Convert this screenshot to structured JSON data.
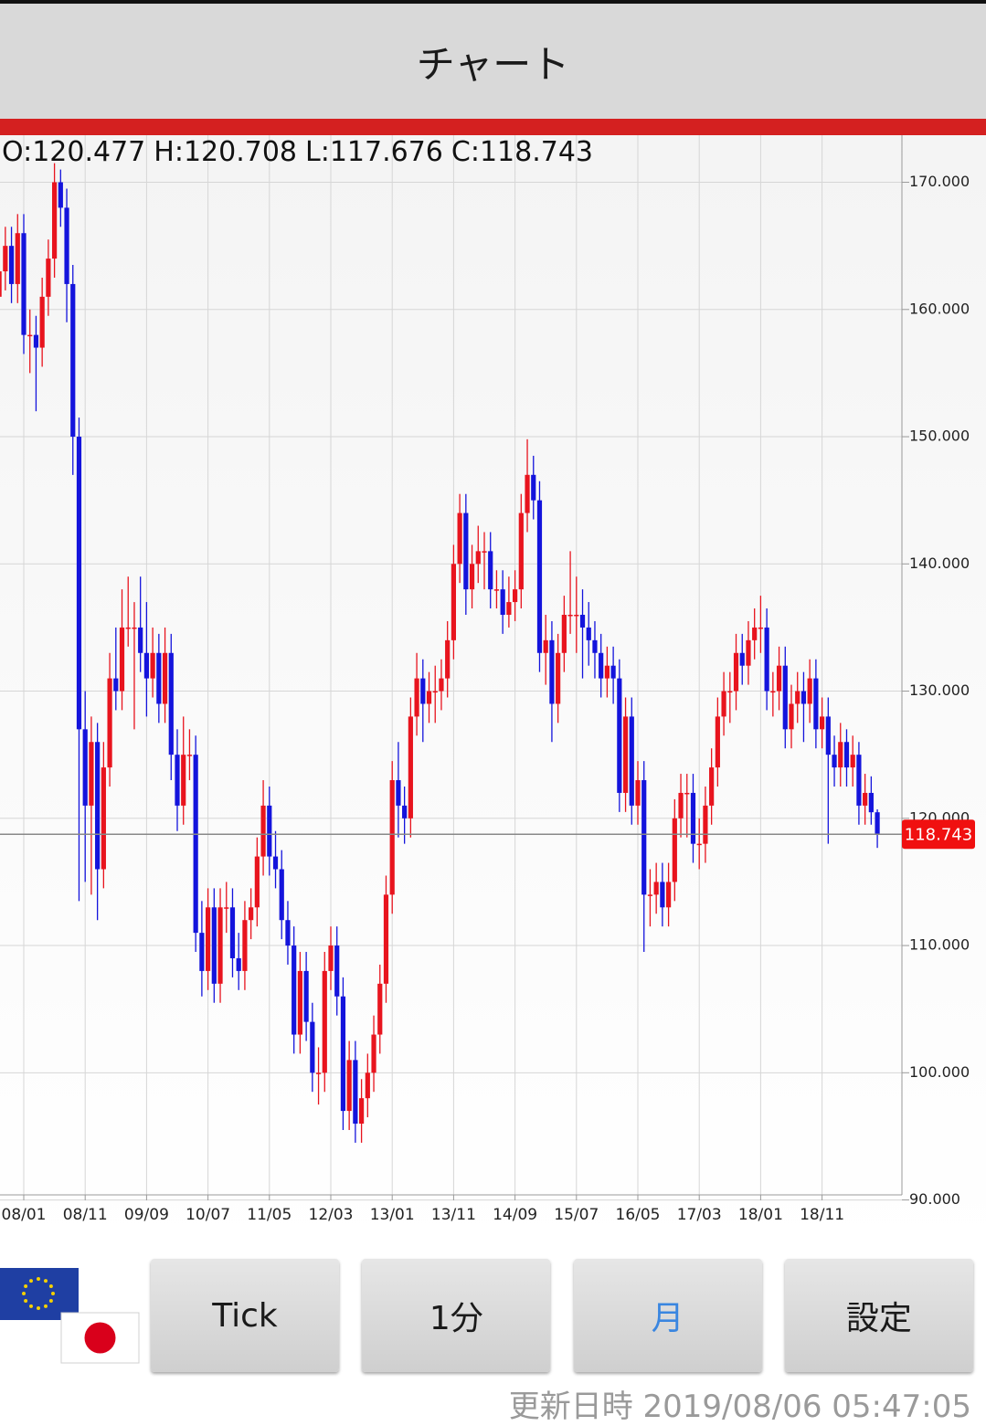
{
  "ui": {
    "header": "チャート",
    "buttons": [
      "Tick",
      "1分",
      "月",
      "設定"
    ],
    "selected_button": 2,
    "updated_label": "更新日時",
    "updated_time": "2019/08/06 05:47:05"
  },
  "chart_data": {
    "type": "candlestick",
    "up_color": "#e8141e",
    "down_color": "#1414dc",
    "ohlc_labels": [
      "O:",
      "H:",
      "L:",
      "C:"
    ],
    "ylim": [
      90.4,
      173.7
    ],
    "yticks": [
      {
        "value": 90,
        "label": "90.000"
      },
      {
        "value": 100,
        "label": "100.000"
      },
      {
        "value": 110,
        "label": "110.000"
      },
      {
        "value": 120,
        "label": "120.000"
      },
      {
        "value": 130,
        "label": "130.000"
      },
      {
        "value": 140,
        "label": "140.000"
      },
      {
        "value": 150,
        "label": "150.000"
      },
      {
        "value": 160,
        "label": "160.000"
      },
      {
        "value": 170,
        "label": "170.000"
      }
    ],
    "grid": true,
    "categories": [
      null,
      null,
      null,
      null,
      "08/01",
      null,
      null,
      null,
      null,
      null,
      null,
      null,
      null,
      null,
      "08/11",
      null,
      null,
      null,
      null,
      null,
      null,
      null,
      null,
      null,
      "09/09",
      null,
      null,
      null,
      null,
      null,
      null,
      null,
      null,
      null,
      "10/07",
      null,
      null,
      null,
      null,
      null,
      null,
      null,
      null,
      null,
      "11/05",
      null,
      null,
      null,
      null,
      null,
      null,
      null,
      null,
      null,
      "12/03",
      null,
      null,
      null,
      null,
      null,
      null,
      null,
      null,
      null,
      "13/01",
      null,
      null,
      null,
      null,
      null,
      null,
      null,
      null,
      null,
      "13/11",
      null,
      null,
      null,
      null,
      null,
      null,
      null,
      null,
      null,
      "14/09",
      null,
      null,
      null,
      null,
      null,
      null,
      null,
      null,
      null,
      "15/07",
      null,
      null,
      null,
      null,
      null,
      null,
      null,
      null,
      null,
      "16/05",
      null,
      null,
      null,
      null,
      null,
      null,
      null,
      null,
      null,
      "17/03",
      null,
      null,
      null,
      null,
      null,
      null,
      null,
      null,
      null,
      "18/01",
      null,
      null,
      null,
      null,
      null,
      null,
      null,
      null,
      null,
      "18/11",
      null,
      null,
      null,
      null,
      null,
      null,
      null,
      null,
      null
    ],
    "candles": [
      [
        161,
        166.5,
        159.5,
        163
      ],
      [
        163,
        166.5,
        161.5,
        165
      ],
      [
        165,
        166.5,
        160.5,
        162
      ],
      [
        162,
        167.5,
        160.5,
        166
      ],
      [
        166,
        167.5,
        156.5,
        158
      ],
      [
        158,
        160,
        155,
        158
      ],
      [
        158,
        159.5,
        152,
        157
      ],
      [
        157,
        162.5,
        155.5,
        161
      ],
      [
        161,
        165.5,
        159.5,
        164
      ],
      [
        164,
        171.5,
        162.5,
        170
      ],
      [
        170,
        171,
        166.5,
        168
      ],
      [
        168,
        169.5,
        159,
        162
      ],
      [
        162,
        163.5,
        147,
        150
      ],
      [
        150,
        151.5,
        113.5,
        127
      ],
      [
        127,
        130,
        115,
        121
      ],
      [
        121,
        128,
        114,
        126
      ],
      [
        126,
        127.5,
        112,
        116
      ],
      [
        116,
        126,
        114.5,
        124
      ],
      [
        124,
        133,
        122.5,
        131
      ],
      [
        131,
        135,
        128.5,
        130
      ],
      [
        130,
        138,
        128.5,
        135
      ],
      [
        135,
        139,
        133.5,
        135
      ],
      [
        135,
        137,
        127,
        135
      ],
      [
        135,
        139,
        131.5,
        133
      ],
      [
        133,
        137,
        128,
        131
      ],
      [
        131,
        135,
        129.5,
        133
      ],
      [
        133,
        134.5,
        127.5,
        129
      ],
      [
        129,
        135,
        127.5,
        133
      ],
      [
        133,
        134.5,
        123,
        125
      ],
      [
        125,
        127,
        119,
        121
      ],
      [
        121,
        128,
        119.5,
        125
      ],
      [
        125,
        127,
        123,
        125
      ],
      [
        125,
        126.5,
        109.5,
        111
      ],
      [
        111,
        113.5,
        106,
        108
      ],
      [
        108,
        114.5,
        106.5,
        113
      ],
      [
        113,
        114.5,
        105.5,
        107
      ],
      [
        107,
        114.5,
        105.5,
        113
      ],
      [
        113,
        115,
        111,
        113
      ],
      [
        113,
        114.5,
        107.5,
        109
      ],
      [
        109,
        111,
        106.5,
        108
      ],
      [
        108,
        113.5,
        106.5,
        112
      ],
      [
        112,
        114.5,
        110.5,
        113
      ],
      [
        113,
        118.5,
        111.5,
        117
      ],
      [
        117,
        123,
        115.5,
        121
      ],
      [
        121,
        122.5,
        115.5,
        117
      ],
      [
        117,
        119,
        114.5,
        116
      ],
      [
        116,
        117.5,
        110.5,
        112
      ],
      [
        112,
        113.5,
        108.5,
        110
      ],
      [
        110,
        111.5,
        101.5,
        103
      ],
      [
        103,
        109.5,
        101.5,
        108
      ],
      [
        108,
        109.5,
        102.5,
        104
      ],
      [
        104,
        105.5,
        98.5,
        100
      ],
      [
        100,
        102,
        97.5,
        100
      ],
      [
        100,
        109.5,
        98.5,
        108
      ],
      [
        108,
        111.5,
        106.5,
        110
      ],
      [
        110,
        111.5,
        104.5,
        106
      ],
      [
        106,
        107.5,
        95.5,
        97
      ],
      [
        97,
        102.5,
        95.5,
        101
      ],
      [
        101,
        102.5,
        94.5,
        96
      ],
      [
        96,
        99.5,
        94.5,
        98
      ],
      [
        98,
        101.5,
        96.5,
        100
      ],
      [
        100,
        104.5,
        98.5,
        103
      ],
      [
        103,
        108.5,
        101.5,
        107
      ],
      [
        107,
        115.5,
        105.5,
        114
      ],
      [
        114,
        124.5,
        112.5,
        123
      ],
      [
        123,
        126,
        118.5,
        121
      ],
      [
        121,
        122.5,
        118,
        120
      ],
      [
        120,
        129.5,
        118.5,
        128
      ],
      [
        128,
        133,
        126.5,
        131
      ],
      [
        131,
        132.5,
        126,
        129
      ],
      [
        129,
        131.5,
        127.5,
        130
      ],
      [
        130,
        132,
        127.5,
        130
      ],
      [
        130,
        132.5,
        128.5,
        131
      ],
      [
        131,
        135.5,
        129.5,
        134
      ],
      [
        134,
        141.5,
        132.5,
        140
      ],
      [
        140,
        145.5,
        138.5,
        144
      ],
      [
        144,
        145.5,
        136,
        138
      ],
      [
        138,
        141.5,
        136.5,
        140
      ],
      [
        140,
        143,
        138.5,
        141
      ],
      [
        141,
        142.5,
        138,
        141
      ],
      [
        141,
        142.5,
        136.5,
        138
      ],
      [
        138,
        139.5,
        136.5,
        138
      ],
      [
        138,
        139.5,
        134.5,
        136
      ],
      [
        136,
        139,
        135,
        137
      ],
      [
        137,
        139.5,
        135.5,
        138
      ],
      [
        138,
        145.5,
        136.5,
        144
      ],
      [
        144,
        149.8,
        142.5,
        147
      ],
      [
        147,
        148.5,
        143.5,
        145
      ],
      [
        145,
        146.5,
        131.5,
        133
      ],
      [
        133,
        136,
        130.5,
        134
      ],
      [
        134,
        135.5,
        126,
        129
      ],
      [
        129,
        134.5,
        127.5,
        133
      ],
      [
        133,
        137.5,
        131.5,
        136
      ],
      [
        136,
        141,
        134.5,
        136
      ],
      [
        136,
        139,
        133,
        136
      ],
      [
        136,
        138,
        131,
        135
      ],
      [
        135,
        137,
        132,
        134
      ],
      [
        134,
        135.5,
        131,
        133
      ],
      [
        133,
        134.5,
        129.5,
        131
      ],
      [
        131,
        133.5,
        129.5,
        132
      ],
      [
        132,
        133.5,
        129,
        131
      ],
      [
        131,
        132.5,
        120.5,
        122
      ],
      [
        122,
        129.5,
        120.5,
        128
      ],
      [
        128,
        129.5,
        119.5,
        121
      ],
      [
        121,
        124.5,
        119.5,
        123
      ],
      [
        123,
        124.5,
        109.5,
        114
      ],
      [
        114,
        116,
        111.5,
        114
      ],
      [
        114,
        116.5,
        112.5,
        115
      ],
      [
        115,
        116.5,
        111.5,
        113
      ],
      [
        113,
        116.5,
        111.5,
        115
      ],
      [
        115,
        121.5,
        113.5,
        120
      ],
      [
        120,
        123.5,
        118.5,
        122
      ],
      [
        122,
        123.5,
        118.5,
        122
      ],
      [
        122,
        123.5,
        116.5,
        118
      ],
      [
        118,
        120,
        116,
        118
      ],
      [
        118,
        122.5,
        116.5,
        121
      ],
      [
        121,
        125.5,
        119.5,
        124
      ],
      [
        124,
        129.5,
        122.5,
        128
      ],
      [
        128,
        131.5,
        126.5,
        130
      ],
      [
        130,
        131.5,
        127.5,
        130
      ],
      [
        130,
        134.5,
        128.5,
        133
      ],
      [
        133,
        134.5,
        130.5,
        132
      ],
      [
        132,
        135.5,
        130.5,
        134
      ],
      [
        134,
        136.5,
        132.5,
        135
      ],
      [
        135,
        137.5,
        133,
        135
      ],
      [
        135,
        136.5,
        128.5,
        130
      ],
      [
        130,
        131.5,
        128,
        130
      ],
      [
        130,
        133.5,
        128.5,
        132
      ],
      [
        132,
        133.5,
        125.5,
        127
      ],
      [
        127,
        130.5,
        125.5,
        129
      ],
      [
        129,
        131.5,
        127.5,
        130
      ],
      [
        130,
        131.5,
        126,
        129
      ],
      [
        129,
        132.5,
        127.5,
        131
      ],
      [
        131,
        132.5,
        125.5,
        127
      ],
      [
        127,
        129.5,
        125.5,
        128
      ],
      [
        128,
        129.5,
        118,
        125
      ],
      [
        125,
        126.5,
        122.5,
        124
      ],
      [
        124,
        127.5,
        122.5,
        126
      ],
      [
        126,
        127,
        122.5,
        124
      ],
      [
        124,
        126.5,
        122.5,
        125
      ],
      [
        125,
        126,
        119.5,
        121
      ],
      [
        121,
        123.5,
        119.5,
        122
      ],
      [
        122,
        123.3,
        119.5,
        120.477
      ],
      [
        120.477,
        120.708,
        117.676,
        118.743
      ]
    ]
  }
}
